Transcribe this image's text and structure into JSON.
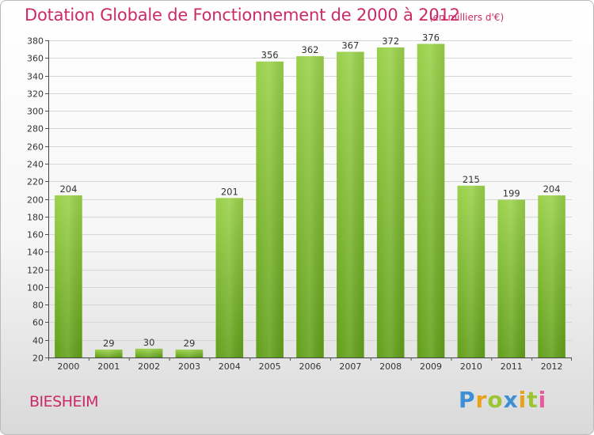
{
  "header": {
    "title": "Dotation Globale de Fonctionnement de 2000 à 2012",
    "units": "(en milliers d'€)"
  },
  "footer": {
    "place": "BIESHEIM",
    "brand": "Proxiti",
    "brand_colors": [
      "#3d8fd6",
      "#e8a21a",
      "#9cc434",
      "#3d8fd6",
      "#e8a21a",
      "#9cc434",
      "#e85a9c"
    ]
  },
  "chart_data": {
    "type": "bar",
    "categories": [
      "2000",
      "2001",
      "2002",
      "2003",
      "2004",
      "2005",
      "2006",
      "2007",
      "2008",
      "2009",
      "2010",
      "2011",
      "2012"
    ],
    "values": [
      204,
      29,
      30,
      29,
      201,
      356,
      362,
      367,
      372,
      376,
      215,
      199,
      204
    ],
    "data_labels": [
      "204",
      "29",
      "30",
      "29",
      "201",
      "356",
      "362",
      "367",
      "372",
      "376",
      "215",
      "199",
      "204"
    ],
    "ylim": [
      20,
      380
    ],
    "yticks": [
      20,
      40,
      60,
      80,
      100,
      120,
      140,
      160,
      180,
      200,
      220,
      240,
      260,
      280,
      300,
      320,
      340,
      360,
      380
    ],
    "grid": true,
    "bar_color": "#8cc63f",
    "bar_color_dark": "#6a9e1f"
  }
}
